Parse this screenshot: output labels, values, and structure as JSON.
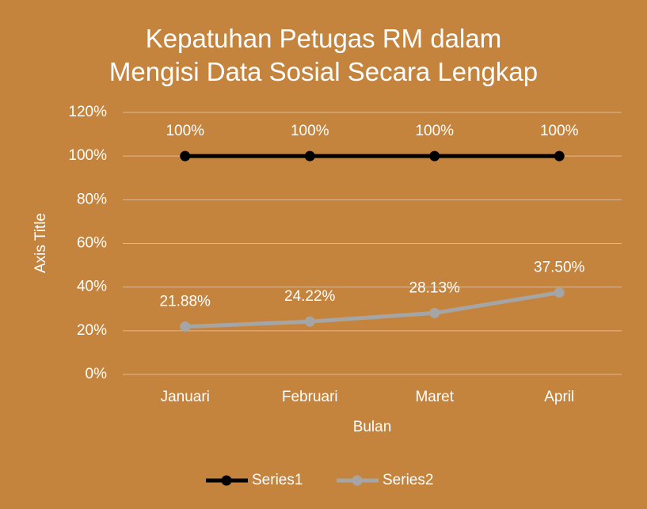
{
  "chart_data": {
    "type": "line",
    "title": "Kepatuhan Petugas RM dalam\nMengisi Data Sosial Secara Lengkap",
    "x_label": "Bulan",
    "y_label": "Axis Title",
    "categories": [
      "Januari",
      "Februari",
      "Maret",
      "April"
    ],
    "series": [
      {
        "name": "Series1",
        "color": "#000000",
        "values": [
          100,
          100,
          100,
          100
        ],
        "value_labels": [
          "100%",
          "100%",
          "100%",
          "100%"
        ]
      },
      {
        "name": "Series2",
        "color": "#a5a5a5",
        "values": [
          21.88,
          24.22,
          28.13,
          37.5
        ],
        "value_labels": [
          "21.88%",
          "24.22%",
          "28.13%",
          "37.50%"
        ]
      }
    ],
    "ylim": [
      0,
      120
    ],
    "yticks": [
      {
        "value": 0,
        "label": "0%"
      },
      {
        "value": 20,
        "label": "20%"
      },
      {
        "value": 40,
        "label": "40%"
      },
      {
        "value": 60,
        "label": "60%"
      },
      {
        "value": 80,
        "label": "80%"
      },
      {
        "value": 100,
        "label": "100%"
      },
      {
        "value": 120,
        "label": "120%"
      }
    ],
    "grid": true,
    "legend": "bottom"
  }
}
